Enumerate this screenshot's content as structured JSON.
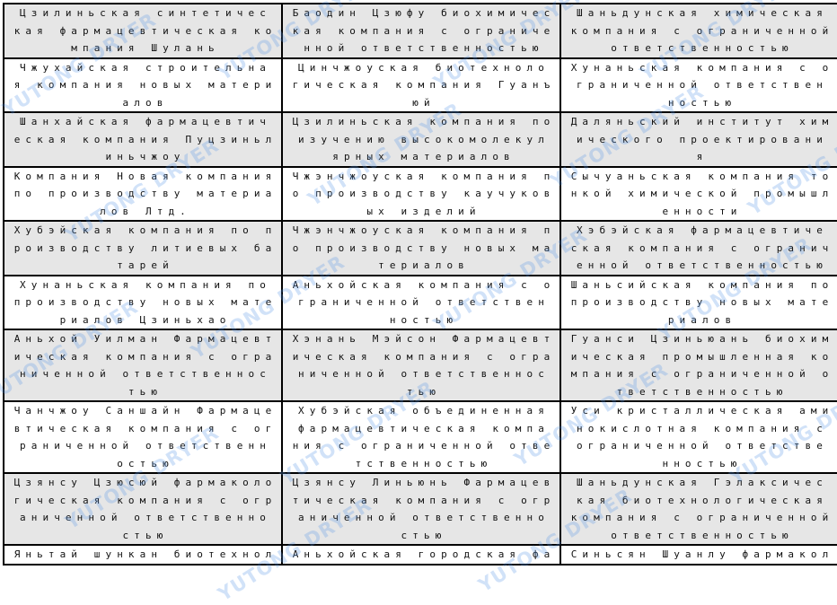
{
  "watermark": "YUTONG DRYER",
  "colors": {
    "shaded_row": "#e6e6e6",
    "watermark": "#5a96e6"
  },
  "rows": [
    {
      "shaded": true,
      "cells": [
        {
          "lines": [
            "Цзилиньская синтетичес",
            "кая фармацевтическая ко",
            "мпания Шулань"
          ]
        },
        {
          "lines": [
            "Баодин Цзюфу биохимичес",
            "кая компания с ограниче",
            "нной ответственностью"
          ]
        },
        {
          "lines": [
            "Шаньдунская химическая",
            "компания с ограниченной",
            "ответственностью"
          ]
        }
      ]
    },
    {
      "shaded": false,
      "cells": [
        {
          "lines": [
            "Чжухайская строительна",
            "я компания новых матери",
            "алов"
          ]
        },
        {
          "lines": [
            "Цинчжоуская биотехноло",
            "гическая компания Гуанъ",
            "юй"
          ]
        },
        {
          "lines": [
            "Хунаньская компания с о",
            "граниченной ответствен",
            "ностью"
          ]
        }
      ]
    },
    {
      "shaded": true,
      "cells": [
        {
          "lines": [
            "Шанхайская фармацевтич",
            "еская компания Пуцзиньл",
            "иньчжоу"
          ]
        },
        {
          "lines": [
            "Цзилиньская компания по",
            "изучению высокомолекул",
            "ярных материалов"
          ]
        },
        {
          "lines": [
            "Даляньский институт хим",
            "ического проектировани",
            "я"
          ]
        }
      ]
    },
    {
      "shaded": false,
      "cells": [
        {
          "lines": [
            "Компания Новая компания",
            "по производству материа",
            "лов Лтд."
          ]
        },
        {
          "lines": [
            "Чжэнчжоуская компания п",
            "о производству каучуков",
            "ых изделий"
          ]
        },
        {
          "lines": [
            "Сычуаньская компания то",
            "нкой химической промышл",
            "енности"
          ]
        }
      ]
    },
    {
      "shaded": true,
      "cells": [
        {
          "lines": [
            "Хубэйская компания по п",
            "роизводству литиевых ба",
            "тарей"
          ]
        },
        {
          "lines": [
            "Чжэнчжоуская компания п",
            "о производству новых ма",
            "териалов"
          ]
        },
        {
          "lines": [
            "Хэбэйская фармацевтиче",
            "ская компания с огранич",
            "енной ответственностью"
          ]
        }
      ]
    },
    {
      "shaded": false,
      "cells": [
        {
          "lines": [
            "Хунаньская компания по",
            "производству новых мате",
            "риалов Цзиньхао"
          ]
        },
        {
          "lines": [
            "Аньхойская компания с о",
            "граниченной ответствен",
            "ностью"
          ]
        },
        {
          "lines": [
            "Шаньсийская компания по",
            "производству новых мате",
            "риалов"
          ]
        }
      ]
    },
    {
      "shaded": true,
      "cells": [
        {
          "lines": [
            "Аньхой Уилман Фармацевт",
            "ическая компания с огра",
            "ниченной ответственнос",
            "тью"
          ]
        },
        {
          "lines": [
            "Хэнань Мэйсон Фармацевт",
            "ическая компания с огра",
            "ниченной ответственнос",
            "тью"
          ]
        },
        {
          "lines": [
            "Гуанси Цзиньюань биохим",
            "ическая промышленная ко",
            "мпания с ограниченной о",
            "тветственностью"
          ]
        }
      ]
    },
    {
      "shaded": false,
      "cells": [
        {
          "lines": [
            "Чанчжоу Саншайн Фармаце",
            "втическая компания с ог",
            "раниченной ответственн",
            "остью"
          ]
        },
        {
          "lines": [
            "Хубэйская объединенная",
            "фармацевтическая компа",
            "ния с ограниченной отве",
            "тственностью"
          ]
        },
        {
          "lines": [
            "Уси кристаллическая ами",
            "нокислотная компания с",
            "ограниченной ответстве",
            "нностью"
          ]
        }
      ]
    },
    {
      "shaded": true,
      "cells": [
        {
          "lines": [
            "Цзянсу Цзюсюй фармаколо",
            "гическая компания с огр",
            "аниченной ответственно",
            "стью"
          ]
        },
        {
          "lines": [
            "Цзянсу Линьюнь Фармацев",
            "тическая компания с огр",
            "аниченной ответственно",
            "стью"
          ]
        },
        {
          "lines": [
            "Шаньдунская Гэлаксичес",
            "кая биотехнологическая",
            "компания с ограниченной",
            "ответственностью"
          ]
        }
      ]
    },
    {
      "shaded": false,
      "cells": [
        {
          "lines": [
            "Яньтай шункан биотехнол"
          ]
        },
        {
          "lines": [
            "Аньхойская городская фа"
          ]
        },
        {
          "lines": [
            "Синьсян Шуанлу фармакол"
          ]
        }
      ]
    }
  ]
}
